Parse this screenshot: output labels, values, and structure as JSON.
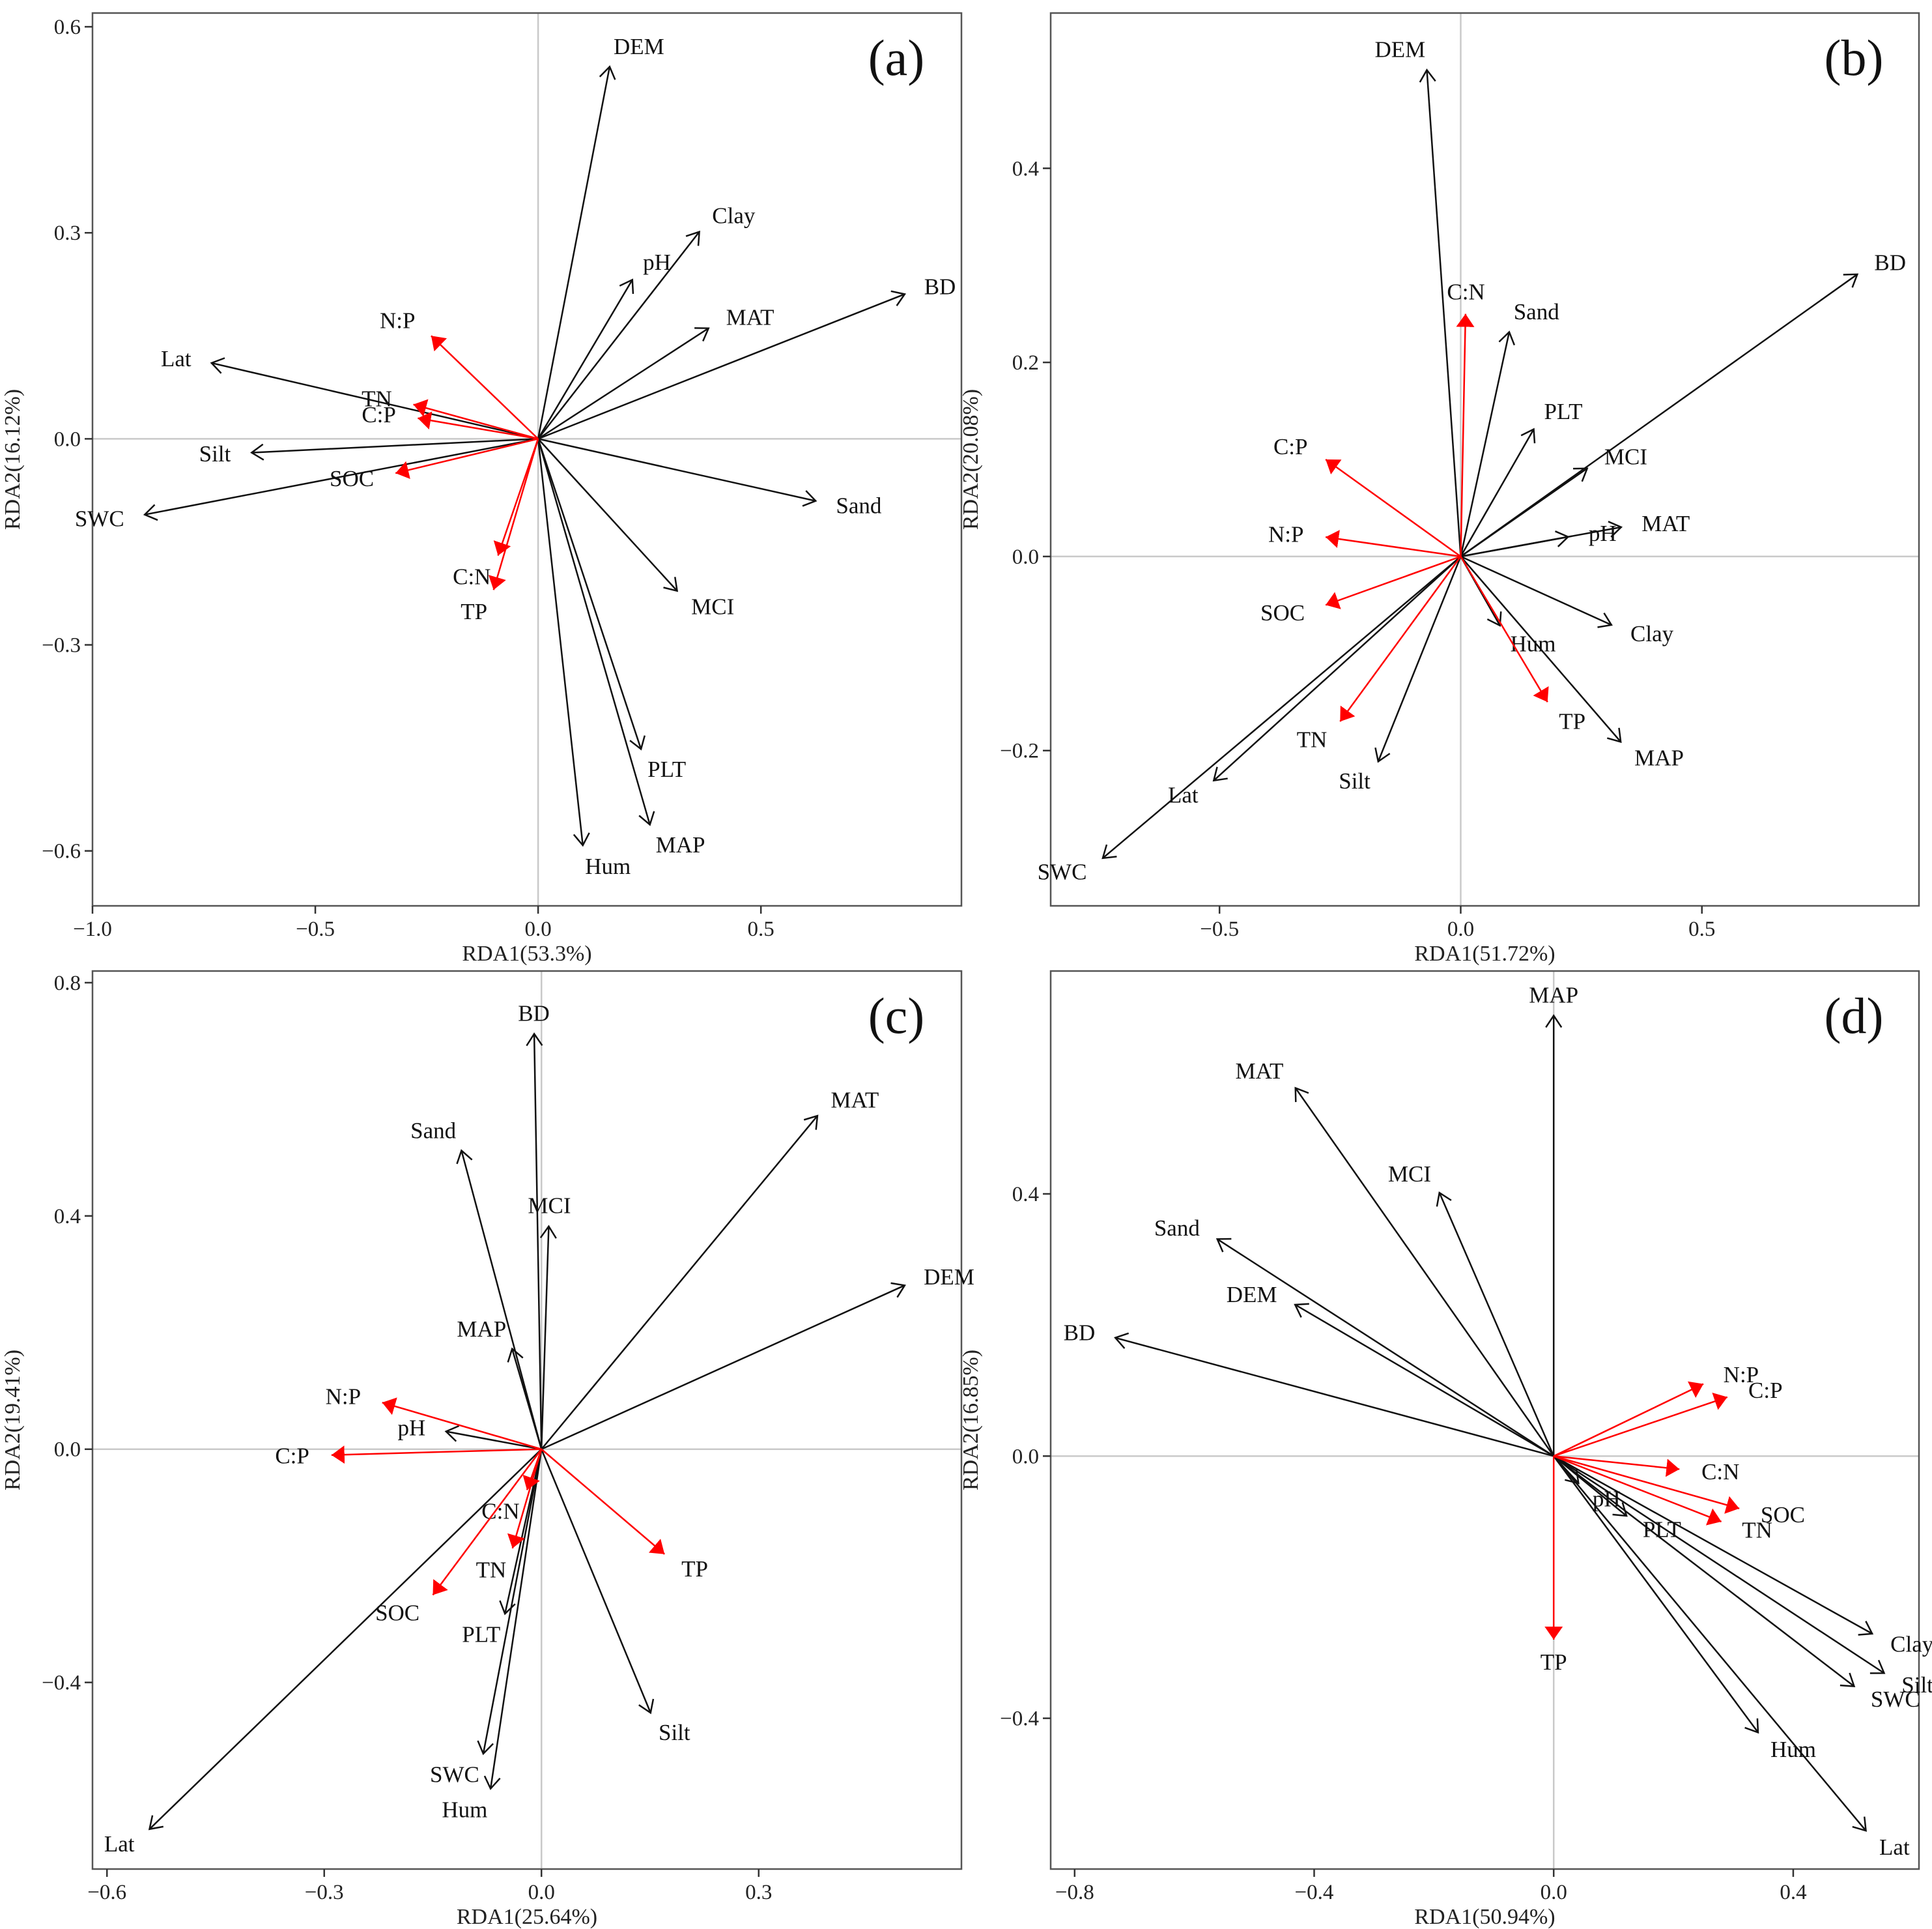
{
  "colors": {
    "env": "#111111",
    "soil": "#ff0000"
  },
  "chart_data": [
    {
      "type": "scatter",
      "title": "(a)",
      "xlabel": "RDA1(53.3%)",
      "ylabel": "RDA2(16.12%)",
      "xlim": [
        -1.0,
        0.95
      ],
      "ylim": [
        -0.68,
        0.62
      ],
      "xticks": [
        -1.0,
        -0.5,
        0.0,
        0.5
      ],
      "yticks": [
        -0.6,
        -0.3,
        0.0,
        0.3,
        0.6
      ],
      "xtick_labels": [
        "−1.0",
        "−0.5",
        "0.0",
        "0.5"
      ],
      "ytick_labels": [
        "−0.6",
        "−0.3",
        "0.0",
        "0.3",
        "0.6"
      ],
      "vectors": [
        {
          "label": "DEM",
          "x": 0.16,
          "y": 0.54,
          "group": "env"
        },
        {
          "label": "Clay",
          "x": 0.36,
          "y": 0.3,
          "group": "env"
        },
        {
          "label": "pH",
          "x": 0.21,
          "y": 0.23,
          "group": "env"
        },
        {
          "label": "MAT",
          "x": 0.38,
          "y": 0.16,
          "group": "env"
        },
        {
          "label": "BD",
          "x": 0.82,
          "y": 0.21,
          "group": "env"
        },
        {
          "label": "Lat",
          "x": -0.73,
          "y": 0.11,
          "group": "env"
        },
        {
          "label": "Silt",
          "x": -0.64,
          "y": -0.02,
          "group": "env"
        },
        {
          "label": "SWC",
          "x": -0.88,
          "y": -0.11,
          "group": "env"
        },
        {
          "label": "Sand",
          "x": 0.62,
          "y": -0.09,
          "group": "env"
        },
        {
          "label": "MCI",
          "x": 0.31,
          "y": -0.22,
          "group": "env"
        },
        {
          "label": "PLT",
          "x": 0.23,
          "y": -0.45,
          "group": "env"
        },
        {
          "label": "MAP",
          "x": 0.25,
          "y": -0.56,
          "group": "env"
        },
        {
          "label": "Hum",
          "x": 0.1,
          "y": -0.59,
          "group": "env"
        },
        {
          "label": "N:P",
          "x": -0.24,
          "y": 0.15,
          "group": "soil"
        },
        {
          "label": "TN",
          "x": -0.28,
          "y": 0.05,
          "group": "soil"
        },
        {
          "label": "C:P",
          "x": -0.27,
          "y": 0.03,
          "group": "soil"
        },
        {
          "label": "SOC",
          "x": -0.32,
          "y": -0.05,
          "group": "soil"
        },
        {
          "label": "C:N",
          "x": -0.09,
          "y": -0.17,
          "group": "soil"
        },
        {
          "label": "TP",
          "x": -0.1,
          "y": -0.22,
          "group": "soil"
        }
      ]
    },
    {
      "type": "scatter",
      "title": "(b)",
      "xlabel": "RDA1(51.72%)",
      "ylabel": "RDA2(20.08%)",
      "xlim": [
        -0.85,
        0.95
      ],
      "ylim": [
        -0.36,
        0.56
      ],
      "xticks": [
        -0.5,
        0.0,
        0.5
      ],
      "yticks": [
        -0.2,
        0.0,
        0.2,
        0.4
      ],
      "xtick_labels": [
        "−0.5",
        "0.0",
        "0.5"
      ],
      "ytick_labels": [
        "−0.2",
        "0.0",
        "0.2",
        "0.4"
      ],
      "vectors": [
        {
          "label": "DEM",
          "x": -0.07,
          "y": 0.5,
          "group": "env"
        },
        {
          "label": "BD",
          "x": 0.82,
          "y": 0.29,
          "group": "env"
        },
        {
          "label": "Sand",
          "x": 0.1,
          "y": 0.23,
          "group": "env"
        },
        {
          "label": "PLT",
          "x": 0.15,
          "y": 0.13,
          "group": "env"
        },
        {
          "label": "MCI",
          "x": 0.26,
          "y": 0.09,
          "group": "env"
        },
        {
          "label": "MAT",
          "x": 0.33,
          "y": 0.03,
          "group": "env"
        },
        {
          "label": "pH",
          "x": 0.22,
          "y": 0.02,
          "group": "env"
        },
        {
          "label": "Hum",
          "x": 0.08,
          "y": -0.07,
          "group": "env"
        },
        {
          "label": "Clay",
          "x": 0.31,
          "y": -0.07,
          "group": "env"
        },
        {
          "label": "MAP",
          "x": 0.33,
          "y": -0.19,
          "group": "env"
        },
        {
          "label": "Silt",
          "x": -0.17,
          "y": -0.21,
          "group": "env"
        },
        {
          "label": "Lat",
          "x": -0.51,
          "y": -0.23,
          "group": "env"
        },
        {
          "label": "SWC",
          "x": -0.74,
          "y": -0.31,
          "group": "env"
        },
        {
          "label": "C:N",
          "x": 0.01,
          "y": 0.25,
          "group": "soil"
        },
        {
          "label": "C:P",
          "x": -0.28,
          "y": 0.1,
          "group": "soil"
        },
        {
          "label": "N:P",
          "x": -0.28,
          "y": 0.02,
          "group": "soil"
        },
        {
          "label": "SOC",
          "x": -0.28,
          "y": -0.05,
          "group": "soil"
        },
        {
          "label": "TN",
          "x": -0.25,
          "y": -0.17,
          "group": "soil"
        },
        {
          "label": "TP",
          "x": 0.18,
          "y": -0.15,
          "group": "soil"
        }
      ]
    },
    {
      "type": "scatter",
      "title": "(c)",
      "xlabel": "RDA1(25.64%)",
      "ylabel": "RDA2(19.41%)",
      "xlim": [
        -0.62,
        0.58
      ],
      "ylim": [
        -0.72,
        0.82
      ],
      "xticks": [
        -0.6,
        -0.3,
        0.0,
        0.3
      ],
      "yticks": [
        -0.4,
        0.0,
        0.4,
        0.8
      ],
      "xtick_labels": [
        "−0.6",
        "−0.3",
        "0.0",
        "0.3"
      ],
      "ytick_labels": [
        "−0.4",
        "0.0",
        "0.4",
        "0.8"
      ],
      "vectors": [
        {
          "label": "BD",
          "x": -0.01,
          "y": 0.71,
          "group": "env"
        },
        {
          "label": "MAT",
          "x": 0.38,
          "y": 0.57,
          "group": "env"
        },
        {
          "label": "Sand",
          "x": -0.11,
          "y": 0.51,
          "group": "env"
        },
        {
          "label": "MCI",
          "x": 0.01,
          "y": 0.38,
          "group": "env"
        },
        {
          "label": "DEM",
          "x": 0.5,
          "y": 0.28,
          "group": "env"
        },
        {
          "label": "MAP",
          "x": -0.04,
          "y": 0.17,
          "group": "env"
        },
        {
          "label": "pH",
          "x": -0.13,
          "y": 0.03,
          "group": "env"
        },
        {
          "label": "PLT",
          "x": -0.05,
          "y": -0.28,
          "group": "env"
        },
        {
          "label": "Silt",
          "x": 0.15,
          "y": -0.45,
          "group": "env"
        },
        {
          "label": "SWC",
          "x": -0.08,
          "y": -0.52,
          "group": "env"
        },
        {
          "label": "Hum",
          "x": -0.07,
          "y": -0.58,
          "group": "env"
        },
        {
          "label": "Lat",
          "x": -0.54,
          "y": -0.65,
          "group": "env"
        },
        {
          "label": "N:P",
          "x": -0.22,
          "y": 0.08,
          "group": "soil"
        },
        {
          "label": "C:P",
          "x": -0.29,
          "y": -0.01,
          "group": "soil"
        },
        {
          "label": "C:N",
          "x": -0.02,
          "y": -0.07,
          "group": "soil"
        },
        {
          "label": "TN",
          "x": -0.04,
          "y": -0.17,
          "group": "soil"
        },
        {
          "label": "SOC",
          "x": -0.15,
          "y": -0.25,
          "group": "soil"
        },
        {
          "label": "TP",
          "x": 0.17,
          "y": -0.18,
          "group": "soil"
        }
      ]
    },
    {
      "type": "scatter",
      "title": "(d)",
      "xlabel": "RDA1(50.94%)",
      "ylabel": "RDA2(16.85%)",
      "xlim": [
        -0.84,
        0.61
      ],
      "ylim": [
        -0.63,
        0.74
      ],
      "xticks": [
        -0.8,
        -0.4,
        0.0,
        0.4
      ],
      "yticks": [
        -0.4,
        0.0,
        0.4
      ],
      "xtick_labels": [
        "−0.8",
        "−0.4",
        "0.0",
        "0.4"
      ],
      "ytick_labels": [
        "−0.4",
        "0.0",
        "0.4"
      ],
      "vectors": [
        {
          "label": "MAP",
          "x": 0.0,
          "y": 0.67,
          "group": "env"
        },
        {
          "label": "MAT",
          "x": -0.43,
          "y": 0.56,
          "group": "env"
        },
        {
          "label": "MCI",
          "x": -0.19,
          "y": 0.4,
          "group": "env"
        },
        {
          "label": "Sand",
          "x": -0.56,
          "y": 0.33,
          "group": "env"
        },
        {
          "label": "DEM",
          "x": -0.43,
          "y": 0.23,
          "group": "env"
        },
        {
          "label": "BD",
          "x": -0.73,
          "y": 0.18,
          "group": "env"
        },
        {
          "label": "pH",
          "x": 0.04,
          "y": -0.04,
          "group": "env"
        },
        {
          "label": "PLT",
          "x": 0.12,
          "y": -0.09,
          "group": "env"
        },
        {
          "label": "Clay",
          "x": 0.53,
          "y": -0.27,
          "group": "env"
        },
        {
          "label": "Silt",
          "x": 0.55,
          "y": -0.33,
          "group": "env"
        },
        {
          "label": "SWC",
          "x": 0.5,
          "y": -0.35,
          "group": "env"
        },
        {
          "label": "Hum",
          "x": 0.34,
          "y": -0.42,
          "group": "env"
        },
        {
          "label": "Lat",
          "x": 0.52,
          "y": -0.57,
          "group": "env"
        },
        {
          "label": "N:P",
          "x": 0.25,
          "y": 0.11,
          "group": "soil"
        },
        {
          "label": "C:P",
          "x": 0.29,
          "y": 0.09,
          "group": "soil"
        },
        {
          "label": "C:N",
          "x": 0.21,
          "y": -0.02,
          "group": "soil"
        },
        {
          "label": "SOC",
          "x": 0.31,
          "y": -0.08,
          "group": "soil"
        },
        {
          "label": "TN",
          "x": 0.28,
          "y": -0.1,
          "group": "soil"
        },
        {
          "label": "TP",
          "x": 0.0,
          "y": -0.28,
          "group": "soil"
        }
      ]
    }
  ]
}
